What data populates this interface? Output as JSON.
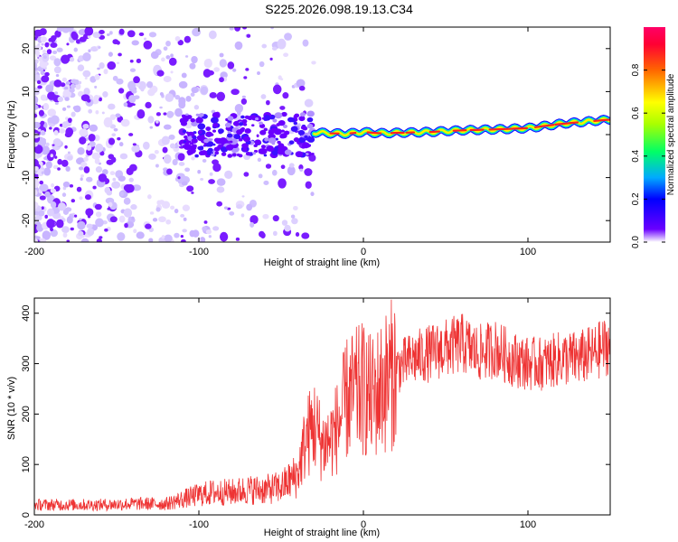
{
  "title": "S225.2026.098.19.13.C34",
  "chart_data": [
    {
      "type": "heatmap",
      "xlabel": "Height of straight line (km)",
      "ylabel": "Frequency (Hz)",
      "xlim": [
        -200,
        150
      ],
      "ylim": [
        -25,
        25
      ],
      "xticks": [
        -200,
        -100,
        0,
        100
      ],
      "xtick_labels": [
        "-200",
        "-100",
        "0",
        "100"
      ],
      "yticks": [
        -20,
        -10,
        0,
        10,
        20
      ],
      "ytick_labels": [
        "-20",
        "-10",
        "0",
        "10",
        "20"
      ],
      "ridge": [
        {
          "x": -30,
          "y": 0.5
        },
        {
          "x": -20,
          "y": 0.3
        },
        {
          "x": -10,
          "y": 0.2
        },
        {
          "x": 0,
          "y": 0.6
        },
        {
          "x": 10,
          "y": 0.3
        },
        {
          "x": 20,
          "y": 0.4
        },
        {
          "x": 40,
          "y": 0.6
        },
        {
          "x": 60,
          "y": 1.0
        },
        {
          "x": 80,
          "y": 1.2
        },
        {
          "x": 100,
          "y": 1.5
        },
        {
          "x": 120,
          "y": 2.5
        },
        {
          "x": 150,
          "y": 3.5
        }
      ],
      "colorbar": {
        "label": "Normalized spectral amplitude",
        "range": [
          0,
          1
        ],
        "ticks": [
          0.0,
          0.2,
          0.4,
          0.6,
          0.8
        ],
        "tick_labels": [
          "0.0",
          "0.2",
          "0.4",
          "0.6",
          "0.8"
        ]
      }
    },
    {
      "type": "line",
      "xlabel": "Height of straight line (km)",
      "ylabel": "SNR (10 * v/v)",
      "xlim": [
        -200,
        150
      ],
      "ylim": [
        0,
        430
      ],
      "xticks": [
        -200,
        -100,
        0,
        100
      ],
      "xtick_labels": [
        "-200",
        "-100",
        "0",
        "100"
      ],
      "yticks": [
        0,
        100,
        200,
        300,
        400
      ],
      "ytick_labels": [
        "0",
        "100",
        "200",
        "300",
        "400"
      ],
      "color": "#ee3333",
      "series": [
        {
          "name": "SNR",
          "x": [
            -200,
            -180,
            -160,
            -140,
            -120,
            -100,
            -90,
            -80,
            -70,
            -60,
            -50,
            -40,
            -35,
            -30,
            -25,
            -20,
            -15,
            -10,
            -5,
            0,
            5,
            10,
            15,
            20,
            30,
            40,
            50,
            60,
            70,
            80,
            90,
            100,
            110,
            120,
            130,
            140,
            150
          ],
          "y": [
            20,
            20,
            20,
            22,
            22,
            40,
            45,
            45,
            50,
            50,
            55,
            80,
            150,
            180,
            140,
            150,
            180,
            230,
            240,
            250,
            230,
            250,
            270,
            290,
            310,
            320,
            330,
            340,
            320,
            330,
            310,
            300,
            300,
            310,
            310,
            320,
            340
          ]
        }
      ]
    }
  ]
}
